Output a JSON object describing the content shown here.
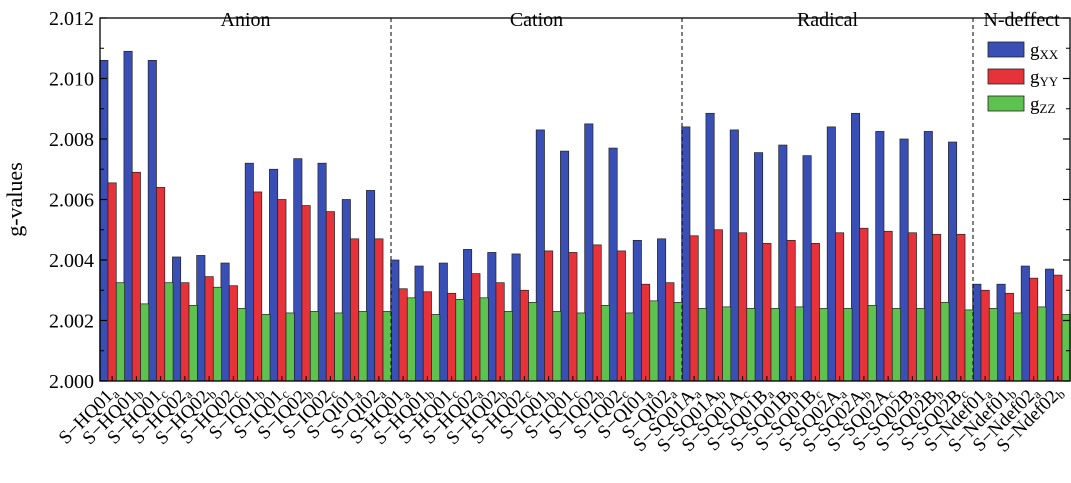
{
  "chart_data": {
    "type": "bar",
    "ylabel": "g-values",
    "ylim": [
      2.0,
      2.012
    ],
    "yticks": [
      "2.000",
      "2.002",
      "2.004",
      "2.006",
      "2.008",
      "2.010",
      "2.012"
    ],
    "categories": [
      {
        "base": "S−HQ01",
        "sub": "a"
      },
      {
        "base": "S−HQ01",
        "sub": "b"
      },
      {
        "base": "S−HQ01",
        "sub": "c"
      },
      {
        "base": "S−HQ02",
        "sub": "a"
      },
      {
        "base": "S−HQ02",
        "sub": "b"
      },
      {
        "base": "S−HQ02",
        "sub": "c"
      },
      {
        "base": "S−IQ01",
        "sub": "b"
      },
      {
        "base": "S−IQ01",
        "sub": "c"
      },
      {
        "base": "S−IQ02",
        "sub": "b"
      },
      {
        "base": "S−IQ02",
        "sub": "c"
      },
      {
        "base": "S−QI01",
        "sub": "a"
      },
      {
        "base": "S−QI02",
        "sub": "a"
      },
      {
        "base": "S−HQ01",
        "sub": "a"
      },
      {
        "base": "S−HQ01",
        "sub": "b"
      },
      {
        "base": "S−HQ01",
        "sub": "c"
      },
      {
        "base": "S−HQ02",
        "sub": "a"
      },
      {
        "base": "S−HQ02",
        "sub": "b"
      },
      {
        "base": "S−HQ02",
        "sub": "c"
      },
      {
        "base": "S−IQ01",
        "sub": "b"
      },
      {
        "base": "S−IQ01",
        "sub": "c"
      },
      {
        "base": "S−IQ02",
        "sub": "b"
      },
      {
        "base": "S−IQ02",
        "sub": "c"
      },
      {
        "base": "S−QI01",
        "sub": "a"
      },
      {
        "base": "S−QI02",
        "sub": "a"
      },
      {
        "base": "S−SQ01A",
        "sub": "a"
      },
      {
        "base": "S−SQ01A",
        "sub": "b"
      },
      {
        "base": "S−SQ01A",
        "sub": "c"
      },
      {
        "base": "S−SQ01B",
        "sub": "a"
      },
      {
        "base": "S−SQ01B",
        "sub": "b"
      },
      {
        "base": "S−SQ01B",
        "sub": "c"
      },
      {
        "base": "S−SQ02A",
        "sub": "a"
      },
      {
        "base": "S−SQ02A",
        "sub": "b"
      },
      {
        "base": "S−SQ02A",
        "sub": "c"
      },
      {
        "base": "S−SQ02B",
        "sub": "a"
      },
      {
        "base": "S−SQ02B",
        "sub": "b"
      },
      {
        "base": "S−SQ02B",
        "sub": "c"
      },
      {
        "base": "S−Ndef01",
        "sub": "a"
      },
      {
        "base": "S−Ndef01",
        "sub": "b"
      },
      {
        "base": "S−Ndef02",
        "sub": "a"
      },
      {
        "base": "S−Ndef02",
        "sub": "b"
      }
    ],
    "groups": [
      {
        "label": "Anion",
        "start": 0,
        "end": 11
      },
      {
        "label": "Cation",
        "start": 12,
        "end": 23
      },
      {
        "label": "Radical",
        "start": 24,
        "end": 35
      },
      {
        "label": "N-deffect",
        "start": 36,
        "end": 39
      }
    ],
    "series": [
      {
        "name": "g",
        "sub": "XX",
        "color": "#3a4fb5",
        "values": [
          2.0106,
          2.0109,
          2.0106,
          2.0041,
          2.00415,
          2.0039,
          2.0072,
          2.007,
          2.00735,
          2.0072,
          2.006,
          2.0063,
          2.004,
          2.0038,
          2.0039,
          2.00435,
          2.00425,
          2.0042,
          2.0083,
          2.0076,
          2.0085,
          2.0077,
          2.00465,
          2.0047,
          2.0084,
          2.00885,
          2.0083,
          2.00755,
          2.0078,
          2.00745,
          2.0084,
          2.00885,
          2.00825,
          2.008,
          2.00825,
          2.0079,
          2.0032,
          2.0032,
          2.0038,
          2.0037
        ]
      },
      {
        "name": "g",
        "sub": "YY",
        "color": "#e8323a",
        "values": [
          2.00655,
          2.0069,
          2.0064,
          2.00325,
          2.00345,
          2.00315,
          2.00625,
          2.006,
          2.0058,
          2.0056,
          2.0047,
          2.0047,
          2.00305,
          2.00295,
          2.0029,
          2.00355,
          2.00325,
          2.003,
          2.0043,
          2.00425,
          2.0045,
          2.0043,
          2.0032,
          2.00325,
          2.0048,
          2.005,
          2.0049,
          2.00455,
          2.00465,
          2.00455,
          2.0049,
          2.00505,
          2.00495,
          2.0049,
          2.00485,
          2.00485,
          2.003,
          2.0029,
          2.0034,
          2.0035
        ]
      },
      {
        "name": "g",
        "sub": "ZZ",
        "color": "#5ec24e",
        "values": [
          2.00325,
          2.00255,
          2.00325,
          2.0025,
          2.0031,
          2.0024,
          2.0022,
          2.00225,
          2.0023,
          2.00225,
          2.0023,
          2.0023,
          2.00275,
          2.0022,
          2.0027,
          2.00275,
          2.0023,
          2.0026,
          2.0023,
          2.00225,
          2.0025,
          2.00225,
          2.00265,
          2.0026,
          2.0024,
          2.00245,
          2.0024,
          2.0024,
          2.00245,
          2.0024,
          2.0024,
          2.0025,
          2.0024,
          2.0024,
          2.0026,
          2.00235,
          2.0024,
          2.00225,
          2.00245,
          2.0022
        ]
      }
    ],
    "legend": "top-right",
    "grid": false
  }
}
